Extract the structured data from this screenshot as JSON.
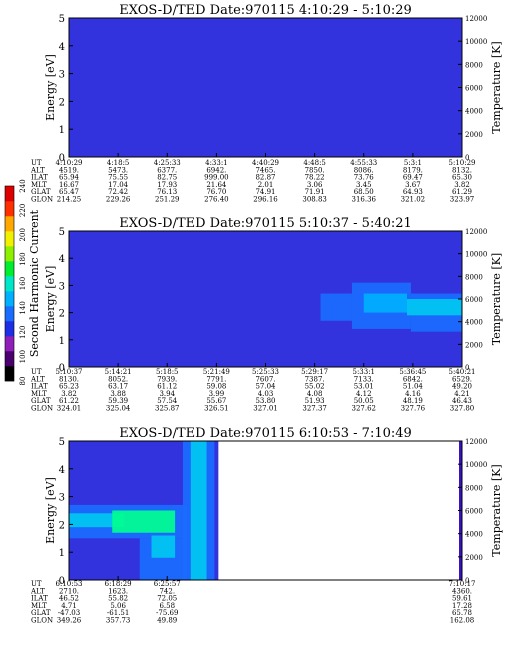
{
  "colors": {
    "background": "#3333dd",
    "panel_bg": "#2f2fe0",
    "band_cyan": "#00c8f0",
    "band_green": "#00ff90",
    "band_blue": "#1a6cff",
    "temperature_bar": "#3a10c8"
  },
  "chart_data": [
    {
      "type": "heatmap",
      "title": "EXOS-D/TED   Date:970115  4:10:29 - 5:10:29",
      "ylabel": "Energy [eV]",
      "ylim": [
        0,
        5
      ],
      "yticks": [
        "0",
        "1",
        "2",
        "3",
        "4",
        "5"
      ],
      "y2label": "Temperature [K]",
      "y2lim": [
        0,
        12000
      ],
      "y2ticks": [
        "0",
        "2000",
        "4000",
        "6000",
        "8000",
        "10000",
        "12000"
      ],
      "table": {
        "labels": [
          "UT",
          "ALT",
          "ILAT",
          "MLT",
          "GLAT",
          "GLON"
        ],
        "columns": [
          [
            "4:10:29",
            "4519.",
            "65.94",
            "16.67",
            "65.47",
            "214.25"
          ],
          [
            "4:18:5",
            "5473.",
            "75.55",
            "17.04",
            "72.42",
            "229.26"
          ],
          [
            "4:25:33",
            "6377.",
            "82.75",
            "17.93",
            "76.13",
            "251.29"
          ],
          [
            "4:33:1",
            "6942.",
            "999.00",
            "21.64",
            "76.70",
            "276.40"
          ],
          [
            "4:40:29",
            "7465.",
            "82.87",
            "2.01",
            "74.91",
            "296.16"
          ],
          [
            "4:48:5",
            "7850.",
            "78.22",
            "3.06",
            "71.91",
            "308.83"
          ],
          [
            "4:55:33",
            "8086.",
            "73.76",
            "3.45",
            "68.50",
            "316.36"
          ],
          [
            "5:3:1",
            "8179.",
            "69.47",
            "3.67",
            "64.93",
            "321.02"
          ],
          [
            "5:10:29",
            "8132.",
            "65.30",
            "3.82",
            "61.29",
            "323.97"
          ]
        ]
      },
      "bands": []
    },
    {
      "type": "heatmap",
      "title": "EXOS-D/TED   Date:970115  5:10:37 - 5:40:21",
      "ylabel": "Energy [eV]",
      "ylim": [
        0,
        5
      ],
      "yticks": [
        "0",
        "1",
        "2",
        "3",
        "4",
        "5"
      ],
      "y2label": "Temperature [K]",
      "y2lim": [
        0,
        12000
      ],
      "y2ticks": [
        "0",
        "2000",
        "4000",
        "6000",
        "8000",
        "10000",
        "12000"
      ],
      "colorbar": {
        "label": "Second Harmonic Current",
        "ticks": [
          "80",
          "100",
          "120",
          "140",
          "160",
          "180",
          "200",
          "220",
          "240"
        ],
        "colors": [
          "#000000",
          "#4b0070",
          "#8f1fb8",
          "#1e2ee6",
          "#1a6cff",
          "#00b0ff",
          "#00e6c8",
          "#00ee30",
          "#8cf000",
          "#f0f000",
          "#ffa800",
          "#ff3000",
          "#dd0000"
        ]
      },
      "table": {
        "labels": [
          "UT",
          "ALT",
          "ILAT",
          "MLT",
          "GLAT",
          "GLON"
        ],
        "columns": [
          [
            "5:10:37",
            "8130.",
            "65.23",
            "3.82",
            "61.22",
            "324.01"
          ],
          [
            "5:14:21",
            "8052.",
            "63.17",
            "3.88",
            "59.39",
            "325.04"
          ],
          [
            "5:18:5",
            "7939.",
            "61.12",
            "3.94",
            "57.54",
            "325.87"
          ],
          [
            "5:21:49",
            "7791.",
            "59.08",
            "3.99",
            "55.67",
            "326.51"
          ],
          [
            "5:25:33",
            "7607.",
            "57.04",
            "4.03",
            "53.80",
            "327.01"
          ],
          [
            "5:29:17",
            "7387.",
            "55.02",
            "4.08",
            "51.93",
            "327.37"
          ],
          [
            "5:33:1",
            "7133.",
            "53.01",
            "4.12",
            "50.05",
            "327.62"
          ],
          [
            "5:36:45",
            "6842.",
            "51.04",
            "4.16",
            "48.19",
            "327.76"
          ],
          [
            "5:40:21",
            "6529.",
            "49.20",
            "4.21",
            "46.43",
            "327.80"
          ]
        ]
      },
      "bands": [
        {
          "t": [
            0.64,
            0.72
          ],
          "e": [
            1.7,
            2.7
          ],
          "color": "#1a6cff"
        },
        {
          "t": [
            0.72,
            0.87
          ],
          "e": [
            1.4,
            3.1
          ],
          "color": "#1a6cff"
        },
        {
          "t": [
            0.87,
            1.0
          ],
          "e": [
            1.3,
            2.7
          ],
          "color": "#1a6cff"
        },
        {
          "t": [
            0.75,
            0.86
          ],
          "e": [
            2.0,
            2.7
          ],
          "color": "#00b0ff"
        },
        {
          "t": [
            0.86,
            1.0
          ],
          "e": [
            1.9,
            2.5
          ],
          "color": "#00c8f0"
        }
      ]
    },
    {
      "type": "heatmap",
      "title": "EXOS-D/TED   Date:970115  6:10:53 - 7:10:49",
      "ylabel": "Energy [eV]",
      "ylim": [
        0,
        5
      ],
      "yticks": [
        "0",
        "1",
        "2",
        "3",
        "4",
        "5"
      ],
      "y2label": "Temperature [K]",
      "y2lim": [
        0,
        12000
      ],
      "y2ticks": [
        "0",
        "2000",
        "4000",
        "6000",
        "8000",
        "10000",
        "12000"
      ],
      "data_extent": 0.38,
      "table": {
        "labels": [
          "UT",
          "ALT",
          "ILAT",
          "MLT",
          "GLAT",
          "GLON"
        ],
        "columns": [
          [
            "6:10:53",
            "2710.",
            "46.52",
            "4.71",
            "-47.03",
            "349.26"
          ],
          [
            "6:18:29",
            "1623.",
            "55.82",
            "5.06",
            "-61.51",
            "357.73"
          ],
          [
            "6:25:57",
            "742.",
            "72.05",
            "6.58",
            "-75.69",
            "49.89"
          ],
          [
            "7:10:17",
            "4360.",
            "59.61",
            "17.28",
            "65.78",
            "162.08"
          ]
        ],
        "positions": [
          0,
          0.125,
          0.25,
          1.0
        ]
      },
      "bands": [
        {
          "t": [
            0.0,
            0.3
          ],
          "e": [
            1.5,
            2.7
          ],
          "color": "#1a6cff"
        },
        {
          "t": [
            0.0,
            0.14
          ],
          "e": [
            1.9,
            2.4
          ],
          "color": "#00c8f0"
        },
        {
          "t": [
            0.11,
            0.27
          ],
          "e": [
            1.7,
            2.5
          ],
          "color": "#00ff90"
        },
        {
          "t": [
            0.18,
            0.3
          ],
          "e": [
            0.0,
            1.5
          ],
          "color": "#1a6cff"
        },
        {
          "t": [
            0.21,
            0.27
          ],
          "e": [
            0.8,
            1.6
          ],
          "color": "#00c8f0"
        },
        {
          "t": [
            0.29,
            0.37
          ],
          "e": [
            0.0,
            5.0
          ],
          "color": "#1a6cff"
        },
        {
          "t": [
            0.31,
            0.35
          ],
          "e": [
            0.0,
            5.0
          ],
          "color": "#00c8f0"
        }
      ]
    }
  ]
}
